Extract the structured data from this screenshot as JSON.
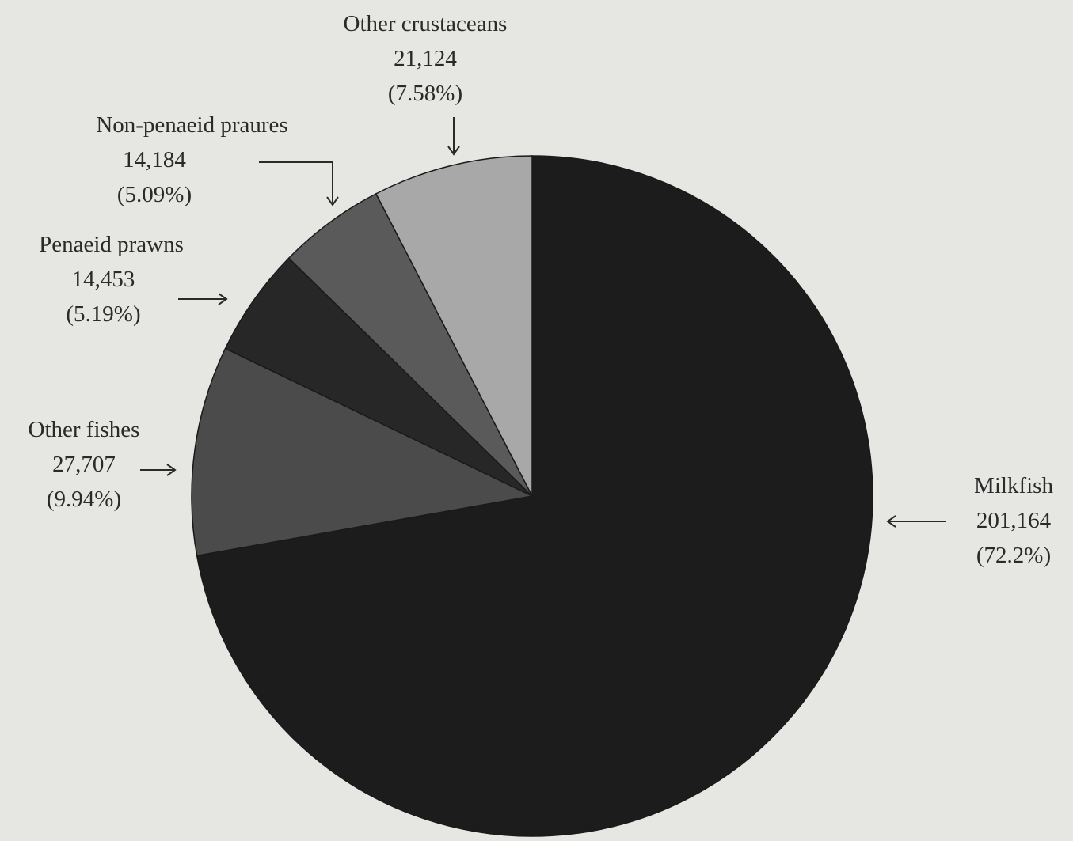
{
  "chart_data": {
    "type": "pie",
    "title": "",
    "start_angle_deg": 0,
    "direction": "clockwise",
    "slices": [
      {
        "label": "Milkfish",
        "value_text": "201,164",
        "percent_text": "(72.2%)",
        "value": 201164,
        "percent": 72.2,
        "color": "#1c1c1c"
      },
      {
        "label": "Other fishes",
        "value_text": "27,707",
        "percent_text": "(9.94%)",
        "value": 27707,
        "percent": 9.94,
        "color": "#4b4b4b"
      },
      {
        "label": "Penaeid prawns",
        "value_text": "14,453",
        "percent_text": "(5.19%)",
        "value": 14453,
        "percent": 5.19,
        "color": "#272727"
      },
      {
        "label": "Non-penaeid praures",
        "value_text": "14,184",
        "percent_text": "(5.09%)",
        "value": 14184,
        "percent": 5.09,
        "color": "#5a5a5a"
      },
      {
        "label": "Other crustaceans",
        "value_text": "21,124",
        "percent_text": "(7.58%)",
        "value": 21124,
        "percent": 7.58,
        "color": "#a8a8a8"
      }
    ]
  }
}
